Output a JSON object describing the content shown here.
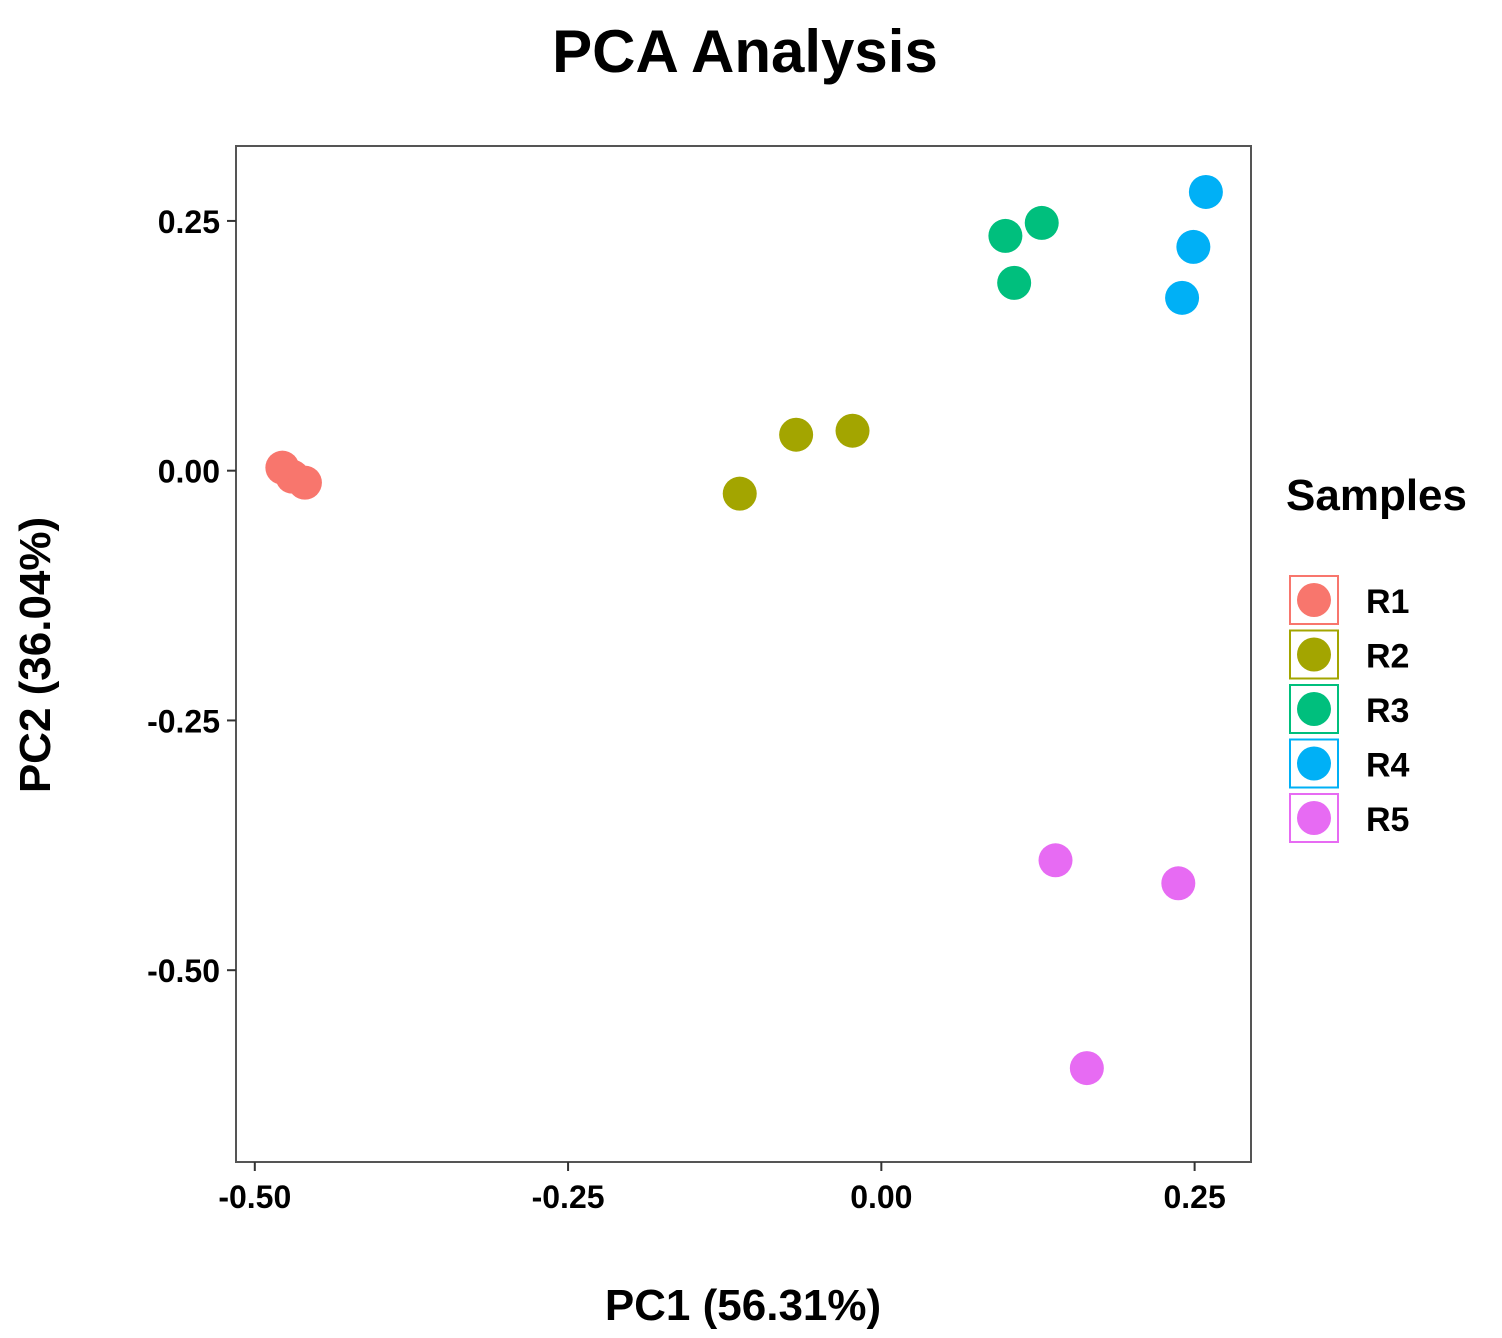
{
  "chart_data": {
    "type": "scatter",
    "title": "PCA Analysis",
    "xlabel": "PC1 (56.31%)",
    "ylabel": "PC2 (36.04%)",
    "xlim": [
      -0.515,
      0.295
    ],
    "ylim": [
      -0.692,
      0.325
    ],
    "xticks": [
      -0.5,
      -0.25,
      0.0,
      0.25
    ],
    "xtick_labels": [
      "-0.50",
      "-0.25",
      "0.00",
      "0.25"
    ],
    "yticks": [
      0.25,
      0.0,
      -0.25,
      -0.5
    ],
    "ytick_labels": [
      "0.25",
      "0.00",
      "-0.25",
      "-0.50"
    ],
    "grid": false,
    "legend": {
      "title": "Samples",
      "position": "right"
    },
    "series": [
      {
        "name": "R1",
        "color": "#F8766D",
        "points": [
          [
            -0.478,
            0.003
          ],
          [
            -0.47,
            -0.006
          ],
          [
            -0.46,
            -0.012
          ]
        ]
      },
      {
        "name": "R2",
        "color": "#A3A500",
        "points": [
          [
            -0.113,
            -0.023
          ],
          [
            -0.068,
            0.036
          ],
          [
            -0.023,
            0.04
          ]
        ]
      },
      {
        "name": "R3",
        "color": "#00BF7D",
        "points": [
          [
            0.099,
            0.235
          ],
          [
            0.128,
            0.248
          ],
          [
            0.106,
            0.188
          ]
        ]
      },
      {
        "name": "R4",
        "color": "#00B0F6",
        "points": [
          [
            0.259,
            0.279
          ],
          [
            0.249,
            0.224
          ],
          [
            0.24,
            0.173
          ]
        ]
      },
      {
        "name": "R5",
        "color": "#E76BF3",
        "points": [
          [
            0.139,
            -0.39
          ],
          [
            0.237,
            -0.413
          ],
          [
            0.164,
            -0.598
          ]
        ]
      }
    ]
  }
}
